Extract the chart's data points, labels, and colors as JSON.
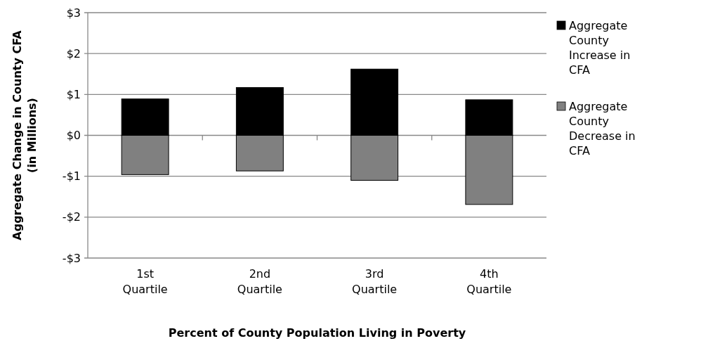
{
  "chart_data": {
    "type": "bar",
    "stacked": true,
    "xlabel": "Percent of County Population Living in Poverty",
    "ylabel": "Aggregate Change in County CFA (in Millions)",
    "categories": [
      "1st Quartile",
      "2nd Quartile",
      "3rd Quartile",
      "4th Quartile"
    ],
    "series": [
      {
        "name": "Aggregate County Increase in CFA",
        "color": "#000000",
        "values": [
          0.89,
          1.17,
          1.62,
          0.87
        ]
      },
      {
        "name": "Aggregate County Decrease in CFA",
        "color": "#808080",
        "values": [
          -0.96,
          -0.87,
          -1.1,
          -1.69
        ]
      }
    ],
    "ylim": [
      -3,
      3
    ],
    "yticks": [
      {
        "value": -3,
        "label": "-$3"
      },
      {
        "value": -2,
        "label": "-$2"
      },
      {
        "value": -1,
        "label": "-$1"
      },
      {
        "value": 0,
        "label": "$0"
      },
      {
        "value": 1,
        "label": "$1"
      },
      {
        "value": 2,
        "label": "$2"
      },
      {
        "value": 3,
        "label": "$3"
      }
    ],
    "grid": "y",
    "legend": "right"
  }
}
